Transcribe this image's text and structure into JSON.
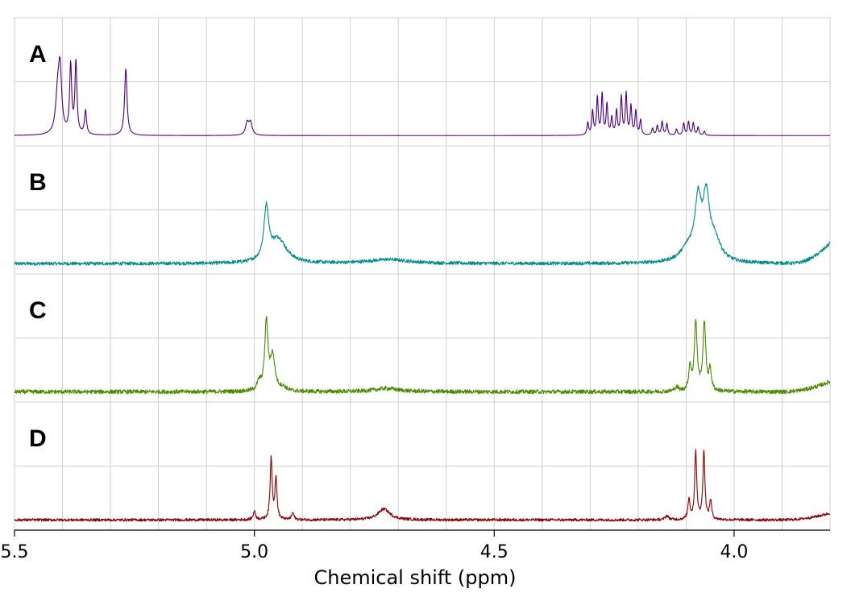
{
  "chart_data": {
    "type": "line",
    "title": "",
    "xlabel": "Chemical shift (ppm)",
    "ylabel": "",
    "xlim": [
      5.5,
      3.8
    ],
    "x_reversed": true,
    "x_ticks": [
      5.5,
      5.0,
      4.5,
      4.0
    ],
    "x_tick_labels": [
      "5.5",
      "5.0",
      "4.5",
      "4.0"
    ],
    "grid": true,
    "panels": [
      {
        "label": "A",
        "color": "#4b0082",
        "noise": 0.0,
        "baseline_slope": [],
        "peaks": [
          {
            "x": 5.41,
            "height": 0.55,
            "width": 0.005
          },
          {
            "x": 5.405,
            "height": 0.85,
            "width": 0.004
          },
          {
            "x": 5.383,
            "height": 1.0,
            "width": 0.0025
          },
          {
            "x": 5.372,
            "height": 1.05,
            "width": 0.0025
          },
          {
            "x": 5.352,
            "height": 0.35,
            "width": 0.0025
          },
          {
            "x": 5.268,
            "height": 0.98,
            "width": 0.003
          },
          {
            "x": 5.015,
            "height": 0.18,
            "width": 0.004
          },
          {
            "x": 5.008,
            "height": 0.18,
            "width": 0.004
          },
          {
            "x": 4.305,
            "height": 0.18,
            "width": 0.002
          },
          {
            "x": 4.295,
            "height": 0.35,
            "width": 0.002
          },
          {
            "x": 4.285,
            "height": 0.55,
            "width": 0.002
          },
          {
            "x": 4.275,
            "height": 0.6,
            "width": 0.002
          },
          {
            "x": 4.265,
            "height": 0.45,
            "width": 0.002
          },
          {
            "x": 4.255,
            "height": 0.25,
            "width": 0.002
          },
          {
            "x": 4.245,
            "height": 0.35,
            "width": 0.002
          },
          {
            "x": 4.235,
            "height": 0.55,
            "width": 0.002
          },
          {
            "x": 4.225,
            "height": 0.6,
            "width": 0.002
          },
          {
            "x": 4.215,
            "height": 0.42,
            "width": 0.002
          },
          {
            "x": 4.205,
            "height": 0.35,
            "width": 0.002
          },
          {
            "x": 4.195,
            "height": 0.22,
            "width": 0.002
          },
          {
            "x": 4.17,
            "height": 0.1,
            "width": 0.002
          },
          {
            "x": 4.16,
            "height": 0.14,
            "width": 0.002
          },
          {
            "x": 4.15,
            "height": 0.2,
            "width": 0.002
          },
          {
            "x": 4.14,
            "height": 0.17,
            "width": 0.002
          },
          {
            "x": 4.12,
            "height": 0.09,
            "width": 0.002
          },
          {
            "x": 4.105,
            "height": 0.18,
            "width": 0.002
          },
          {
            "x": 4.095,
            "height": 0.2,
            "width": 0.002
          },
          {
            "x": 4.085,
            "height": 0.18,
            "width": 0.002
          },
          {
            "x": 4.075,
            "height": 0.12,
            "width": 0.002
          },
          {
            "x": 4.062,
            "height": 0.06,
            "width": 0.002
          }
        ]
      },
      {
        "label": "B",
        "color": "#008b8b",
        "noise": 0.025,
        "baseline_slope": [
          3.88,
          0.3
        ],
        "peaks": [
          {
            "x": 4.975,
            "height": 0.75,
            "width": 0.006
          },
          {
            "x": 4.95,
            "height": 0.35,
            "width": 0.02
          },
          {
            "x": 4.72,
            "height": 0.06,
            "width": 0.05
          },
          {
            "x": 4.075,
            "height": 0.82,
            "width": 0.008
          },
          {
            "x": 4.058,
            "height": 0.85,
            "width": 0.008
          },
          {
            "x": 4.04,
            "height": 0.3,
            "width": 0.015
          },
          {
            "x": 4.095,
            "height": 0.2,
            "width": 0.02
          }
        ]
      },
      {
        "label": "C",
        "color": "#4a8a00",
        "noise": 0.03,
        "baseline_slope": [
          3.9,
          0.15
        ],
        "peaks": [
          {
            "x": 4.975,
            "height": 1.0,
            "width": 0.004
          },
          {
            "x": 4.962,
            "height": 0.5,
            "width": 0.006
          },
          {
            "x": 4.99,
            "height": 0.12,
            "width": 0.005
          },
          {
            "x": 4.94,
            "height": 0.05,
            "width": 0.008
          },
          {
            "x": 4.725,
            "height": 0.05,
            "width": 0.03
          },
          {
            "x": 4.08,
            "height": 1.0,
            "width": 0.0035
          },
          {
            "x": 4.062,
            "height": 1.0,
            "width": 0.0035
          },
          {
            "x": 4.092,
            "height": 0.35,
            "width": 0.003
          },
          {
            "x": 4.05,
            "height": 0.3,
            "width": 0.003
          },
          {
            "x": 4.12,
            "height": 0.06,
            "width": 0.005
          }
        ]
      },
      {
        "label": "D",
        "color": "#8b0000",
        "noise": 0.02,
        "baseline_slope": [
          3.9,
          0.1
        ],
        "peaks": [
          {
            "x": 4.965,
            "height": 0.9,
            "width": 0.0025
          },
          {
            "x": 4.955,
            "height": 0.6,
            "width": 0.0025
          },
          {
            "x": 5.0,
            "height": 0.12,
            "width": 0.003
          },
          {
            "x": 4.92,
            "height": 0.1,
            "width": 0.003
          },
          {
            "x": 4.73,
            "height": 0.16,
            "width": 0.015
          },
          {
            "x": 4.08,
            "height": 1.0,
            "width": 0.0025
          },
          {
            "x": 4.063,
            "height": 1.0,
            "width": 0.0025
          },
          {
            "x": 4.094,
            "height": 0.3,
            "width": 0.0025
          },
          {
            "x": 4.049,
            "height": 0.28,
            "width": 0.0025
          },
          {
            "x": 4.14,
            "height": 0.06,
            "width": 0.004
          }
        ]
      }
    ]
  }
}
